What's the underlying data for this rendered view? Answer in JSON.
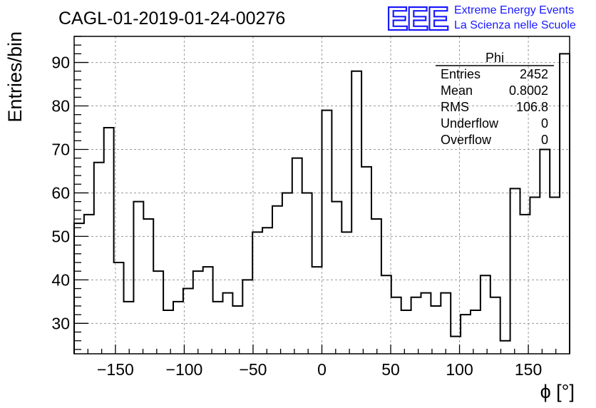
{
  "header": {
    "run_title": "CAGL-01-2019-01-24-00276",
    "logo_text": "EEE",
    "logo_line1": "Extreme Energy Events",
    "logo_line2": "La Scienza nelle Scuole",
    "brand_color": "#1a1aff"
  },
  "stats_box": {
    "name": "Phi",
    "rows": [
      {
        "label": "Entries",
        "value": "2452"
      },
      {
        "label": "Mean",
        "value": "0.8002"
      },
      {
        "label": "RMS",
        "value": "106.8"
      },
      {
        "label": "Underflow",
        "value": "0"
      },
      {
        "label": "Overflow",
        "value": "0"
      }
    ]
  },
  "chart_data": {
    "type": "histogram",
    "title": "CAGL-01-2019-01-24-00276",
    "xlabel": "ϕ [°]",
    "ylabel": "Entries/bin",
    "xlim": [
      -180,
      180
    ],
    "ylim": [
      23,
      96
    ],
    "bin_width": 7.2,
    "bin_start": -180,
    "values": [
      53,
      55,
      67,
      75,
      44,
      35,
      58,
      54,
      42,
      33,
      35,
      38,
      42,
      43,
      35,
      37,
      34,
      40,
      51,
      52,
      57,
      60,
      68,
      60,
      43,
      79,
      58,
      51,
      88,
      66,
      54,
      41,
      36,
      33,
      36,
      37,
      34,
      37,
      27,
      32,
      33,
      41,
      36,
      26,
      61,
      55,
      59,
      70,
      59,
      92
    ],
    "x_ticks": [
      -150,
      -100,
      -50,
      0,
      50,
      100,
      150
    ],
    "x_tick_labels": [
      "−150",
      "−100",
      "−50",
      "0",
      "50",
      "100",
      "150"
    ],
    "y_ticks": [
      30,
      40,
      50,
      60,
      70,
      80,
      90
    ],
    "y_tick_labels": [
      "30",
      "40",
      "50",
      "60",
      "70",
      "80",
      "90"
    ],
    "grid": true,
    "line_color": "#000000"
  }
}
